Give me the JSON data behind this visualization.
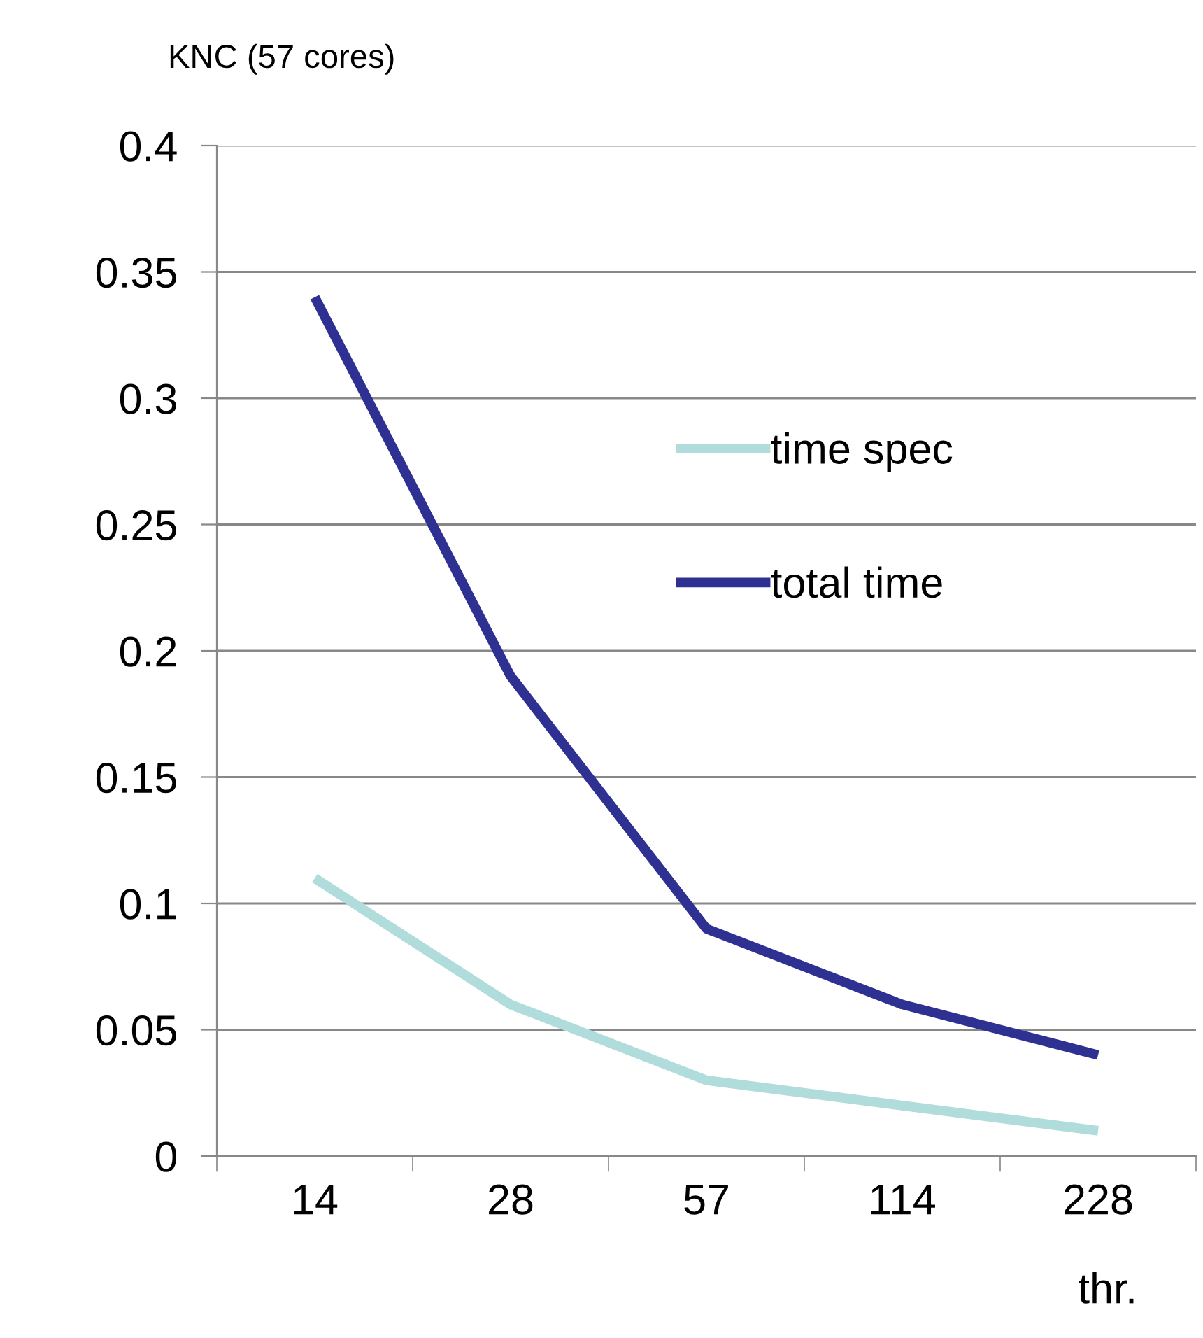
{
  "chart_data": {
    "type": "line",
    "title": "KNC (57 cores)",
    "xlabel": "thr.",
    "categories": [
      "14",
      "28",
      "57",
      "114",
      "228"
    ],
    "series": [
      {
        "name": "time spec",
        "color": "#b0dcdc",
        "values": [
          0.11,
          0.06,
          0.03,
          0.02,
          0.01
        ]
      },
      {
        "name": "total time",
        "color": "#2e3192",
        "values": [
          0.34,
          0.19,
          0.09,
          0.06,
          0.04
        ]
      }
    ],
    "ylim": [
      0,
      0.4
    ],
    "yticks": [
      0,
      0.05,
      0.1,
      0.15,
      0.2,
      0.25,
      0.3,
      0.35,
      0.4
    ],
    "grid": "y",
    "legend": "right",
    "marker": "none",
    "line_style": "solid"
  }
}
